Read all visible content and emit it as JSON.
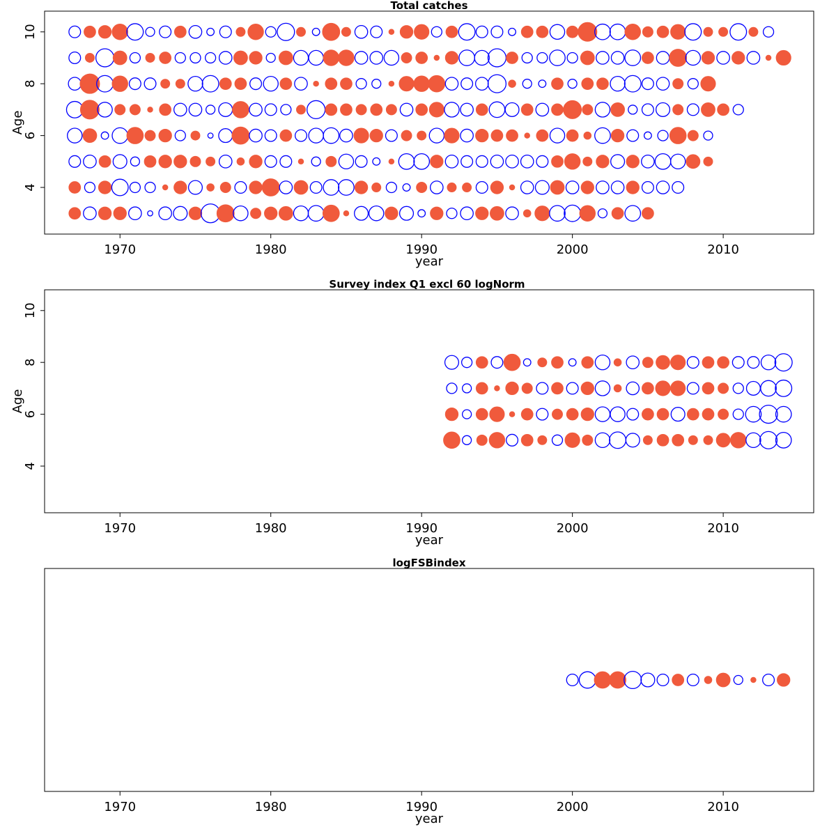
{
  "colors": {
    "positive": "#f05a3c",
    "negative": "#0000ff"
  },
  "chart_data": [
    {
      "type": "scatter",
      "subtype": "bubble-residuals",
      "title": "Total catches",
      "xlabel": "year",
      "ylabel": "Age",
      "xlim": [
        1965,
        2016
      ],
      "ylim": [
        2.2,
        10.8
      ],
      "xticks": [
        1970,
        1980,
        1990,
        2000,
        2010
      ],
      "yticks": [
        4,
        6,
        8,
        10
      ],
      "x": [
        1967,
        1968,
        1969,
        1970,
        1971,
        1972,
        1973,
        1974,
        1975,
        1976,
        1977,
        1978,
        1979,
        1980,
        1981,
        1982,
        1983,
        1984,
        1985,
        1986,
        1987,
        1988,
        1989,
        1990,
        1991,
        1992,
        1993,
        1994,
        1995,
        1996,
        1997,
        1998,
        1999,
        2000,
        2001,
        2002,
        2003,
        2004,
        2005,
        2006,
        2007,
        2008,
        2009,
        2010,
        2011,
        2012,
        2013,
        2014
      ],
      "ages": [
        10,
        9,
        8,
        7,
        6,
        5,
        4,
        3
      ],
      "residuals": [
        [
          -0.5,
          0.5,
          0.6,
          0.9,
          -1.0,
          -0.3,
          -0.5,
          0.5,
          -0.6,
          -0.2,
          -0.5,
          0.3,
          0.9,
          -0.4,
          -1.1,
          0.3,
          -0.2,
          1.1,
          0.3,
          -0.6,
          -0.5,
          0.1,
          0.6,
          0.8,
          -0.4,
          0.5,
          -1.0,
          -0.5,
          -0.5,
          -0.2,
          0.5,
          0.5,
          -0.8,
          0.5,
          1.3,
          -0.9,
          -0.9,
          0.9,
          0.4,
          0.5,
          0.8,
          -1.0,
          0.3,
          0.3,
          -1.0,
          0.3,
          -0.4
        ],
        [
          -0.5,
          0.3,
          -1.2,
          0.7,
          -0.4,
          0.3,
          0.5,
          -0.4,
          -0.4,
          -0.4,
          -0.6,
          0.7,
          0.6,
          -0.3,
          0.7,
          -0.8,
          -0.8,
          0.9,
          0.9,
          -0.6,
          -0.6,
          -0.8,
          0.4,
          0.5,
          0.1,
          0.6,
          -0.9,
          -0.8,
          -1.2,
          0.5,
          -0.4,
          -0.4,
          -0.9,
          -0.4,
          0.7,
          -0.6,
          -0.6,
          -0.9,
          0.5,
          -0.6,
          1.1,
          -0.8,
          0.6,
          -0.6,
          0.6,
          -0.6,
          0.1,
          0.8
        ],
        [
          -0.6,
          1.4,
          -1.0,
          0.9,
          -0.5,
          -0.5,
          0.3,
          0.3,
          -0.8,
          -1.0,
          0.5,
          0.5,
          -0.5,
          -0.8,
          0.5,
          -0.6,
          0.1,
          0.5,
          0.5,
          -0.4,
          -0.3,
          0.1,
          0.8,
          0.9,
          1.0,
          -0.6,
          -0.5,
          -0.6,
          -1.2,
          0.2,
          -0.3,
          -0.2,
          0.5,
          -0.3,
          0.5,
          0.5,
          -0.8,
          -1.0,
          -0.5,
          -0.6,
          0.4,
          -0.4,
          0.8
        ],
        [
          -1.0,
          1.3,
          -0.8,
          0.4,
          0.4,
          0.1,
          0.5,
          -0.6,
          -0.6,
          -0.3,
          -0.7,
          1.0,
          -0.6,
          -0.5,
          -0.4,
          0.3,
          -1.2,
          0.5,
          0.5,
          0.4,
          0.5,
          0.4,
          -0.6,
          0.5,
          0.8,
          -0.8,
          -0.6,
          0.5,
          -0.9,
          -0.7,
          0.5,
          -0.6,
          0.5,
          1.2,
          0.4,
          -0.8,
          0.7,
          -0.3,
          -0.5,
          -0.7,
          0.4,
          -0.5,
          0.7,
          0.5,
          -0.4
        ],
        [
          -0.8,
          0.7,
          -0.2,
          -0.9,
          1.0,
          0.4,
          0.6,
          -0.4,
          0.3,
          -0.1,
          -0.7,
          1.1,
          -0.6,
          -0.5,
          0.5,
          -0.5,
          -0.8,
          -0.9,
          -0.6,
          0.8,
          0.6,
          -0.5,
          0.4,
          0.3,
          -0.8,
          0.8,
          -0.6,
          0.6,
          0.5,
          0.5,
          0.1,
          0.5,
          -0.8,
          0.5,
          0.2,
          -0.9,
          0.6,
          -0.5,
          -0.2,
          -0.4,
          1.0,
          0.4,
          -0.3
        ],
        [
          -0.5,
          -0.6,
          0.5,
          -0.7,
          -0.3,
          0.5,
          0.6,
          0.6,
          0.4,
          0.3,
          -0.6,
          0.2,
          0.6,
          -0.5,
          -0.5,
          0.1,
          -0.3,
          0.4,
          -0.8,
          -0.5,
          -0.2,
          0.1,
          -0.9,
          -0.9,
          0.6,
          -0.6,
          -0.5,
          -0.5,
          -0.6,
          -0.6,
          -0.6,
          -0.5,
          0.5,
          0.9,
          0.3,
          0.6,
          -0.7,
          0.6,
          -0.6,
          -0.9,
          -0.8,
          0.7,
          0.3
        ],
        [
          0.5,
          -0.4,
          0.6,
          -1.0,
          -0.4,
          -0.4,
          0.1,
          0.6,
          -0.7,
          0.2,
          0.4,
          -0.5,
          0.6,
          1.1,
          -0.6,
          0.7,
          -0.5,
          -0.9,
          -0.9,
          0.6,
          0.3,
          -0.4,
          -0.2,
          0.4,
          -0.6,
          0.3,
          0.3,
          -0.5,
          0.6,
          0.1,
          -0.6,
          -0.7,
          0.7,
          -0.6,
          0.6,
          -0.6,
          -0.6,
          0.6,
          -0.5,
          -0.6,
          -0.5
        ],
        [
          0.5,
          -0.6,
          0.6,
          0.6,
          -0.6,
          -0.1,
          -0.6,
          -0.7,
          0.6,
          -1.3,
          1.1,
          -0.8,
          0.4,
          0.6,
          0.7,
          -0.8,
          -0.9,
          1.0,
          0.1,
          -0.7,
          -0.8,
          0.6,
          -0.7,
          -0.2,
          0.6,
          -0.4,
          -0.6,
          0.6,
          0.7,
          -0.6,
          0.2,
          0.8,
          -0.9,
          -1.0,
          0.9,
          -0.3,
          0.5,
          -0.9,
          0.5
        ]
      ]
    },
    {
      "type": "scatter",
      "subtype": "bubble-residuals",
      "title": "Survey index Q1 excl 60 logNorm",
      "xlabel": "year",
      "ylabel": "Age",
      "xlim": [
        1965,
        2016
      ],
      "ylim": [
        2.2,
        10.8
      ],
      "xticks": [
        1970,
        1980,
        1990,
        2000,
        2010
      ],
      "yticks": [
        4,
        6,
        8,
        10
      ],
      "x": [
        1992,
        1993,
        1994,
        1995,
        1996,
        1997,
        1998,
        1999,
        2000,
        2001,
        2002,
        2003,
        2004,
        2005,
        2006,
        2007,
        2008,
        2009,
        2010,
        2011,
        2012,
        2013,
        2014
      ],
      "ages": [
        8,
        7,
        6,
        5
      ],
      "residuals": [
        [
          -0.7,
          -0.4,
          0.5,
          -0.5,
          1.0,
          -0.2,
          0.3,
          0.5,
          -0.2,
          0.5,
          -0.8,
          0.2,
          -0.6,
          0.4,
          0.7,
          0.8,
          -0.5,
          0.5,
          0.5,
          -0.5,
          -0.5,
          -0.8,
          -1.1
        ],
        [
          -0.4,
          -0.3,
          0.5,
          0.1,
          0.6,
          0.4,
          -0.5,
          0.5,
          -0.5,
          0.6,
          -0.8,
          0.2,
          -0.6,
          0.5,
          0.8,
          0.8,
          -0.5,
          0.5,
          0.4,
          -0.4,
          -0.7,
          -0.9,
          -1.0
        ],
        [
          0.6,
          -0.3,
          0.5,
          0.8,
          0.1,
          0.5,
          -0.5,
          0.4,
          0.5,
          0.6,
          -0.8,
          -0.8,
          -0.5,
          0.5,
          0.5,
          -0.7,
          0.5,
          0.5,
          0.4,
          -0.4,
          -0.9,
          -1.2,
          -0.9
        ],
        [
          1.0,
          -0.3,
          0.4,
          0.9,
          -0.5,
          0.5,
          0.3,
          -0.4,
          0.8,
          0.4,
          -0.8,
          -1.0,
          -0.7,
          0.3,
          0.5,
          0.5,
          0.3,
          0.3,
          0.7,
          0.9,
          -0.8,
          -1.1,
          -0.9
        ]
      ]
    },
    {
      "type": "scatter",
      "subtype": "bubble-residuals",
      "title": "logFSBindex",
      "xlabel": "year",
      "ylabel": "",
      "xlim": [
        1965,
        2016
      ],
      "xticks": [
        1970,
        1980,
        1990,
        2000,
        2010
      ],
      "x": [
        2000,
        2001,
        2002,
        2003,
        2004,
        2005,
        2006,
        2007,
        2008,
        2009,
        2010,
        2011,
        2012,
        2013,
        2014
      ],
      "residuals": [
        -0.5,
        -1.0,
        1.0,
        1.0,
        -1.1,
        -0.7,
        -0.5,
        0.5,
        -0.5,
        0.2,
        0.7,
        -0.3,
        0.1,
        -0.5,
        0.6
      ]
    }
  ]
}
